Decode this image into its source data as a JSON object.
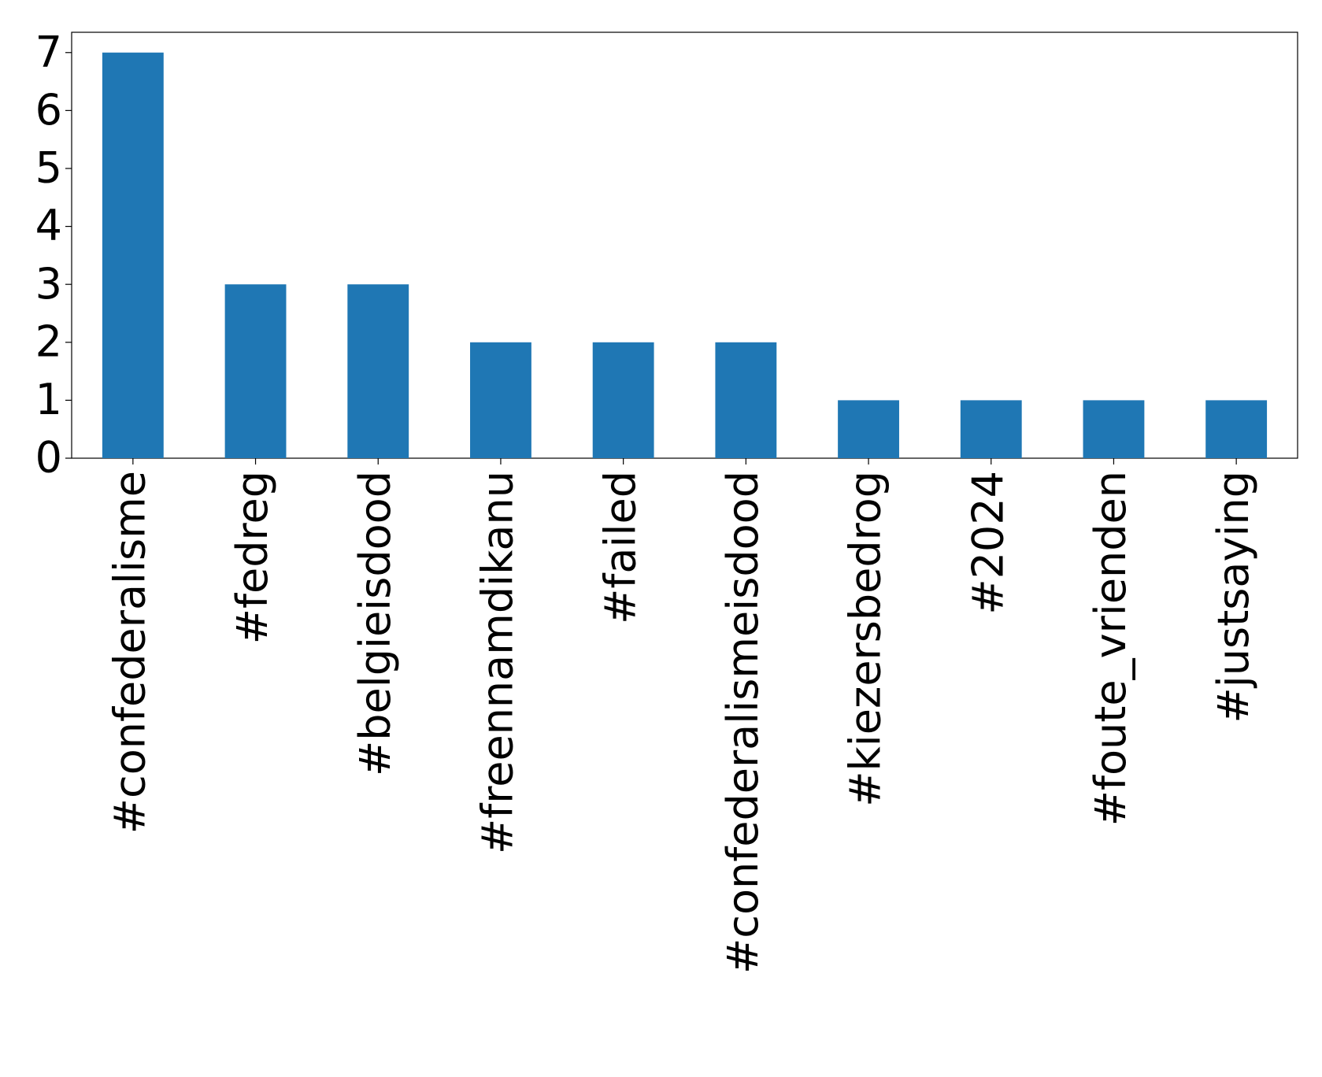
{
  "chart_data": {
    "type": "bar",
    "categories": [
      "#confederalisme",
      "#fedreg",
      "#belgieisdood",
      "#freennamdikanu",
      "#failed",
      "#confederalismeisdood",
      "#kiezersbedrog",
      "#2024",
      "#foute_vrienden",
      "#justsaying"
    ],
    "values": [
      7,
      3,
      3,
      2,
      2,
      2,
      1,
      1,
      1,
      1
    ],
    "color": "#1f77b4",
    "ylim": [
      0,
      7.35
    ],
    "yticks": [
      0,
      1,
      2,
      3,
      4,
      5,
      6,
      7
    ],
    "grid": false
  }
}
